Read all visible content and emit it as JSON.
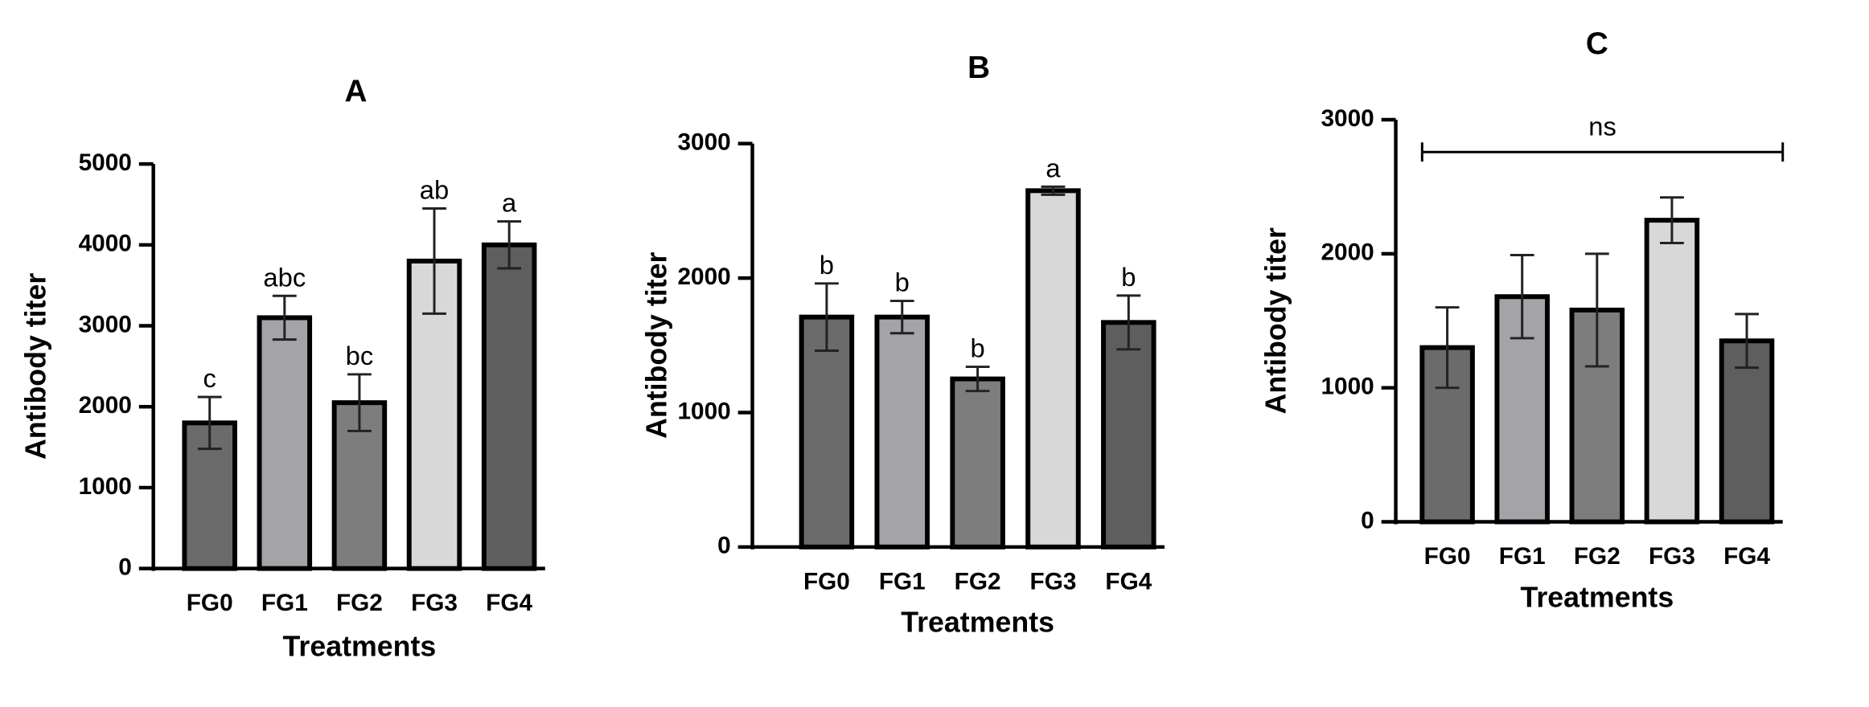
{
  "chart_data": [
    {
      "type": "bar",
      "title": "A",
      "xlabel": "Treatments",
      "ylabel": "Antibody titer",
      "categories": [
        "FG0",
        "FG1",
        "FG2",
        "FG3",
        "FG4"
      ],
      "values": [
        1800,
        3100,
        2050,
        3800,
        4000
      ],
      "errors": [
        320,
        270,
        350,
        650,
        290
      ],
      "annotations": [
        "c",
        "abc",
        "bc",
        "ab",
        "a"
      ],
      "colors": [
        "#6b6b6b",
        "#a3a3a8",
        "#7d7d7d",
        "#d8d8d8",
        "#5e5e5e"
      ],
      "ylim": [
        0,
        5000
      ],
      "yticks": [
        0,
        1000,
        2000,
        3000,
        4000,
        5000
      ]
    },
    {
      "type": "bar",
      "title": "B",
      "xlabel": "Treatments",
      "ylabel": "Antibody titer",
      "categories": [
        "FG0",
        "FG1",
        "FG2",
        "FG3",
        "FG4"
      ],
      "values": [
        1710,
        1710,
        1250,
        2650,
        1670
      ],
      "errors": [
        250,
        120,
        90,
        30,
        200
      ],
      "annotations": [
        "b",
        "b",
        "b",
        "a",
        "b"
      ],
      "colors": [
        "#6b6b6b",
        "#a3a3a8",
        "#7d7d7d",
        "#d8d8d8",
        "#5e5e5e"
      ],
      "ylim": [
        0,
        3000
      ],
      "yticks": [
        0,
        1000,
        2000,
        3000
      ]
    },
    {
      "type": "bar",
      "title": "C",
      "xlabel": "Treatments",
      "ylabel": "Antibody titer",
      "categories": [
        "FG0",
        "FG1",
        "FG2",
        "FG3",
        "FG4"
      ],
      "values": [
        1300,
        1680,
        1580,
        2250,
        1350
      ],
      "errors": [
        300,
        310,
        420,
        170,
        200
      ],
      "bracket_label": "ns",
      "colors": [
        "#6b6b6b",
        "#a3a3a8",
        "#7d7d7d",
        "#d8d8d8",
        "#5e5e5e"
      ],
      "ylim": [
        0,
        3000
      ],
      "yticks": [
        0,
        1000,
        2000,
        3000
      ]
    }
  ]
}
